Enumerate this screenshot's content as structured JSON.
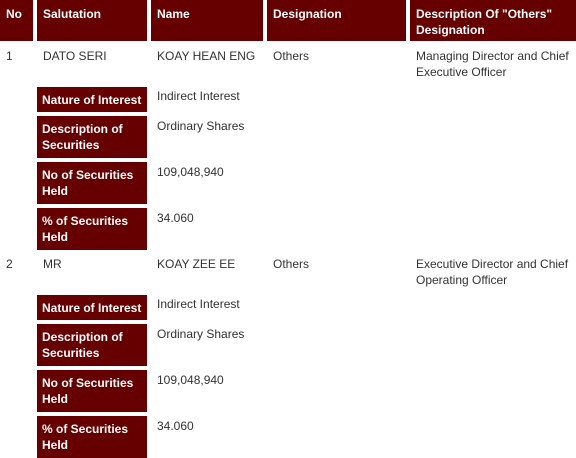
{
  "headers": {
    "no": "No",
    "salutation": "Salutation",
    "name": "Name",
    "designation": "Designation",
    "description_others": "Description Of \"Others\" Designation"
  },
  "labels": {
    "nature_of_interest": "Nature of Interest",
    "description_of_securities": "Description of Securities",
    "no_of_securities_held": "No of Securities Held",
    "percent_of_securities_held": "% of Securities Held"
  },
  "rows": [
    {
      "no": "1",
      "salutation": "DATO SERI",
      "name": "KOAY HEAN ENG",
      "designation": "Others",
      "description_others": "Managing Director and Chief Executive Officer",
      "nature_of_interest": "Indirect Interest",
      "description_of_securities": "Ordinary Shares",
      "no_of_securities_held": "109,048,940",
      "percent_of_securities_held": "34.060"
    },
    {
      "no": "2",
      "salutation": "MR",
      "name": "KOAY ZEE EE",
      "designation": "Others",
      "description_others": "Executive Director and Chief Operating Officer",
      "nature_of_interest": "Indirect Interest",
      "description_of_securities": "Ordinary Shares",
      "no_of_securities_held": "109,048,940",
      "percent_of_securities_held": "34.060"
    }
  ]
}
